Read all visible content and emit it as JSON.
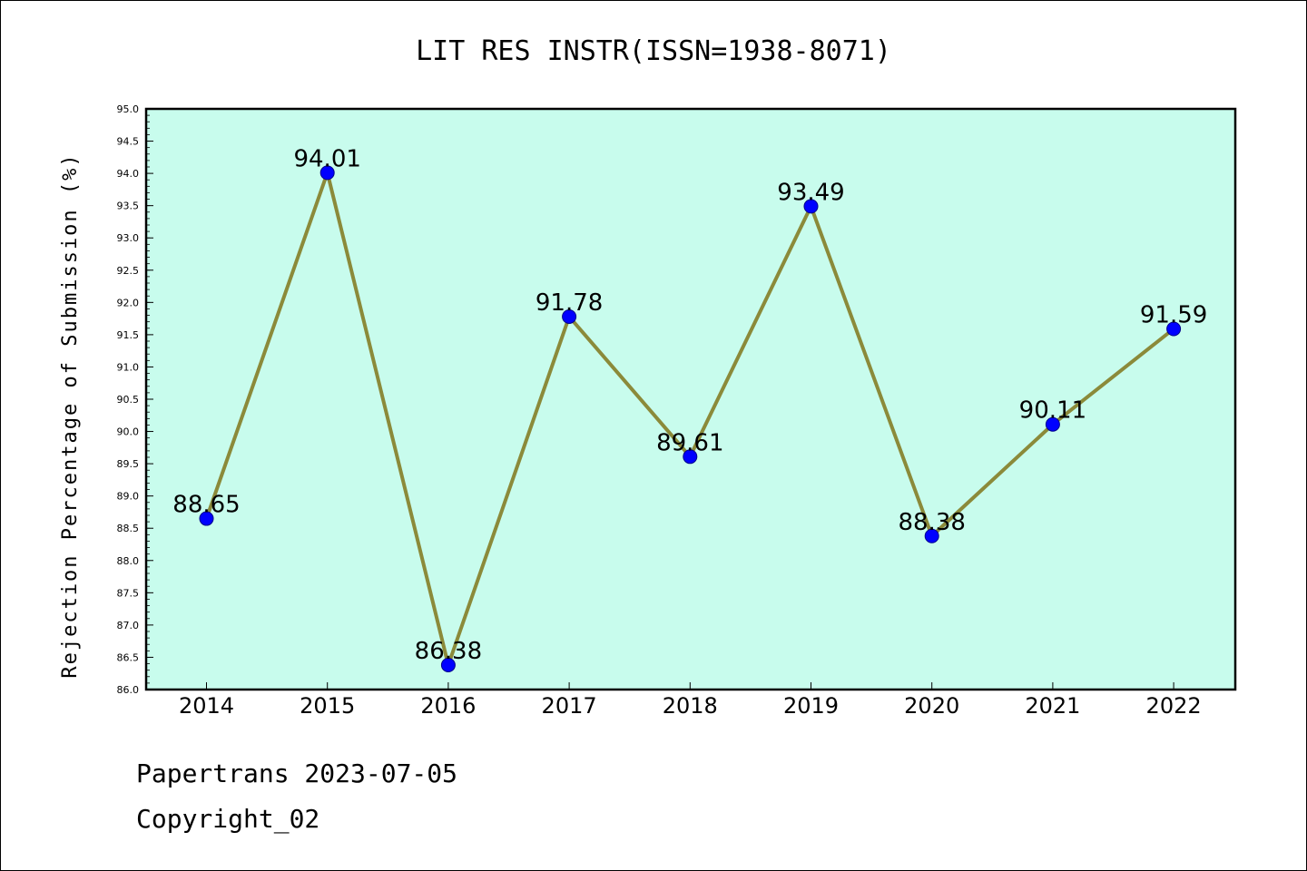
{
  "chart_data": {
    "type": "line",
    "title": "LIT RES INSTR(ISSN=1938-8071)",
    "ylabel": "Rejection Percentage of Submission (%)",
    "xlabel": "",
    "categories": [
      "2014",
      "2015",
      "2016",
      "2017",
      "2018",
      "2019",
      "2020",
      "2021",
      "2022"
    ],
    "series": [
      {
        "values": [
          88.65,
          94.01,
          86.38,
          91.78,
          89.61,
          93.49,
          88.38,
          90.11,
          91.59
        ]
      }
    ],
    "data_labels": [
      "88.65",
      "94.01",
      "86.38",
      "91.78",
      "89.61",
      "93.49",
      "88.38",
      "90.11",
      "91.59"
    ],
    "ylim": [
      86.0,
      95.0
    ],
    "yticks": [
      "86.0",
      "86.5",
      "87.0",
      "87.5",
      "88.0",
      "88.5",
      "89.0",
      "89.5",
      "90.0",
      "90.5",
      "91.0",
      "91.5",
      "92.0",
      "92.5",
      "93.0",
      "93.5",
      "94.0",
      "94.5",
      "95.0"
    ],
    "grid": false,
    "colors": {
      "plot_background": "#c8fced",
      "line": "#8b8a3a",
      "marker": "#0000ff"
    }
  },
  "footer": {
    "line1": "Papertrans 2023-07-05",
    "line2": "Copyright_02"
  }
}
